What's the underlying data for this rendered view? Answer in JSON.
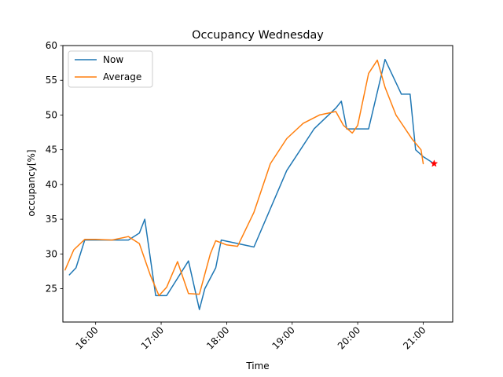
{
  "chart_data": {
    "type": "line",
    "title": "Occupancy Wednesday",
    "xlabel": "Time",
    "ylabel": "occupancy[%]",
    "xlim": [
      "15:30",
      "21:27"
    ],
    "ylim": [
      20.2,
      60
    ],
    "x_ticks": [
      "16:00",
      "17:00",
      "18:00",
      "19:00",
      "20:00",
      "21:00"
    ],
    "y_ticks": [
      25,
      30,
      35,
      40,
      45,
      50,
      55,
      60
    ],
    "legend_position": "top-left",
    "grid": false,
    "series": [
      {
        "name": "Now",
        "color": "#1f77b4",
        "x": [
          "15:36",
          "15:42",
          "15:50",
          "16:00",
          "16:30",
          "16:40",
          "16:45",
          "16:55",
          "17:05",
          "17:25",
          "17:35",
          "17:40",
          "17:50",
          "17:55",
          "18:25",
          "18:55",
          "19:20",
          "19:40",
          "19:45",
          "19:50",
          "20:00",
          "20:10",
          "20:25",
          "20:40",
          "20:48",
          "20:53",
          "21:00",
          "21:10"
        ],
        "values": [
          27,
          28,
          32,
          32,
          32,
          33,
          35,
          24,
          24,
          29,
          22,
          25,
          28,
          32,
          31,
          42,
          48,
          51,
          52,
          48,
          48,
          48,
          58,
          53,
          53,
          45,
          44,
          43
        ]
      },
      {
        "name": "Average",
        "color": "#ff7f0e",
        "x": [
          "15:32",
          "15:40",
          "15:50",
          "16:00",
          "16:15",
          "16:30",
          "16:40",
          "16:50",
          "16:58",
          "17:05",
          "17:15",
          "17:25",
          "17:35",
          "17:45",
          "17:50",
          "18:00",
          "18:10",
          "18:25",
          "18:40",
          "18:55",
          "19:10",
          "19:25",
          "19:40",
          "19:47",
          "19:55",
          "20:00",
          "20:10",
          "20:18",
          "20:25",
          "20:35",
          "20:50",
          "20:58",
          "21:00"
        ],
        "values": [
          27.7,
          30.6,
          32.1,
          32.1,
          32.0,
          32.5,
          31.5,
          27.0,
          24.0,
          25.2,
          28.9,
          24.3,
          24.2,
          30.0,
          31.9,
          31.3,
          31.1,
          36.0,
          43.0,
          46.6,
          48.8,
          50.0,
          50.5,
          48.5,
          47.4,
          48.5,
          56.0,
          57.9,
          54.0,
          50.0,
          46.5,
          45.0,
          43.0
        ]
      }
    ],
    "marker": {
      "x": "21:10",
      "value": 43,
      "color": "#ff0000",
      "shape": "star"
    }
  }
}
